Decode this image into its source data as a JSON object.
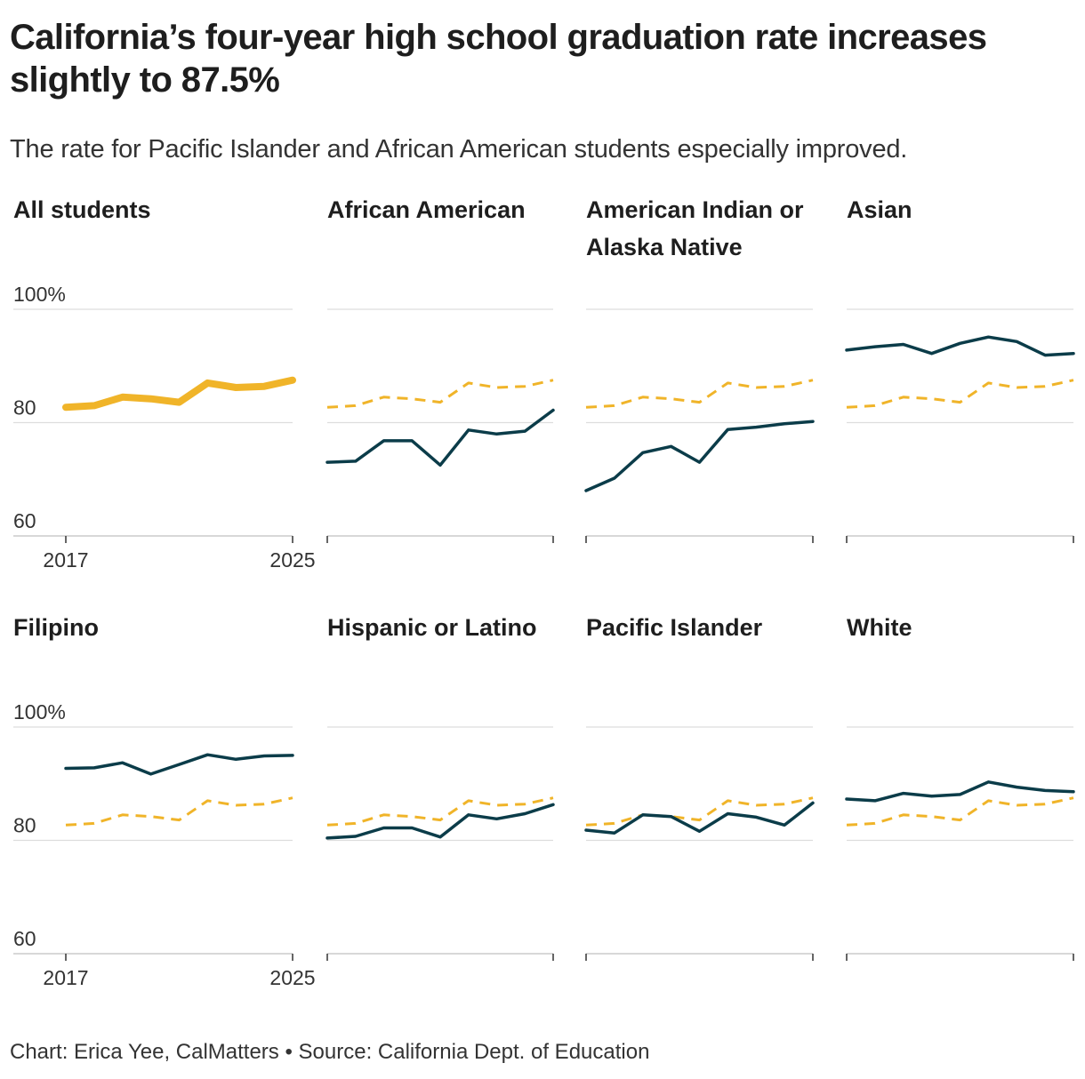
{
  "title": "California’s four-year high school graduation rate increases slightly to 87.5%",
  "subtitle": "The rate for Pacific Islander and African American students especially improved.",
  "footer": "Chart: Erica Yee, CalMatters • Source: California Dept. of Education",
  "colors": {
    "all_students": "#f0b429",
    "group": "#0b3c49",
    "gridline": "#dddddd",
    "axis_text": "#333333"
  },
  "chart_data": {
    "type": "line",
    "x": [
      2017,
      2018,
      2019,
      2020,
      2021,
      2022,
      2023,
      2024,
      2025
    ],
    "ylim": [
      60,
      100
    ],
    "y_ticks": [
      60,
      80,
      100
    ],
    "y_tick_labels": [
      "60",
      "80",
      "100%"
    ],
    "x_tick_labels": [
      "2017",
      "2025"
    ],
    "grid": true,
    "reference_series": [
      82.7,
      83.0,
      84.5,
      84.2,
      83.6,
      87.0,
      86.2,
      86.4,
      87.5
    ],
    "panels": [
      {
        "name": "All students",
        "values": [
          82.7,
          83.0,
          84.5,
          84.2,
          83.6,
          87.0,
          86.2,
          86.4,
          87.5
        ],
        "highlight": true
      },
      {
        "name": "African American",
        "values": [
          73.0,
          73.2,
          76.8,
          76.8,
          72.5,
          78.7,
          78.0,
          78.5,
          82.2
        ]
      },
      {
        "name": "American Indian or Alaska Native",
        "values": [
          68.0,
          70.2,
          74.7,
          75.8,
          73.0,
          78.8,
          79.2,
          79.8,
          80.2
        ]
      },
      {
        "name": "Asian",
        "values": [
          92.8,
          93.4,
          93.8,
          92.2,
          94.0,
          95.1,
          94.3,
          91.9,
          92.2
        ]
      },
      {
        "name": "Filipino",
        "values": [
          92.7,
          92.8,
          93.7,
          91.7,
          93.4,
          95.1,
          94.3,
          94.9,
          95.0
        ]
      },
      {
        "name": "Hispanic or Latino",
        "values": [
          80.4,
          80.7,
          82.2,
          82.2,
          80.6,
          84.5,
          83.8,
          84.7,
          86.3
        ]
      },
      {
        "name": "Pacific Islander",
        "values": [
          81.8,
          81.3,
          84.5,
          84.2,
          81.6,
          84.7,
          84.1,
          82.7,
          86.6
        ]
      },
      {
        "name": "White",
        "values": [
          87.3,
          87.0,
          88.3,
          87.8,
          88.1,
          90.3,
          89.4,
          88.8,
          88.6
        ]
      }
    ]
  }
}
